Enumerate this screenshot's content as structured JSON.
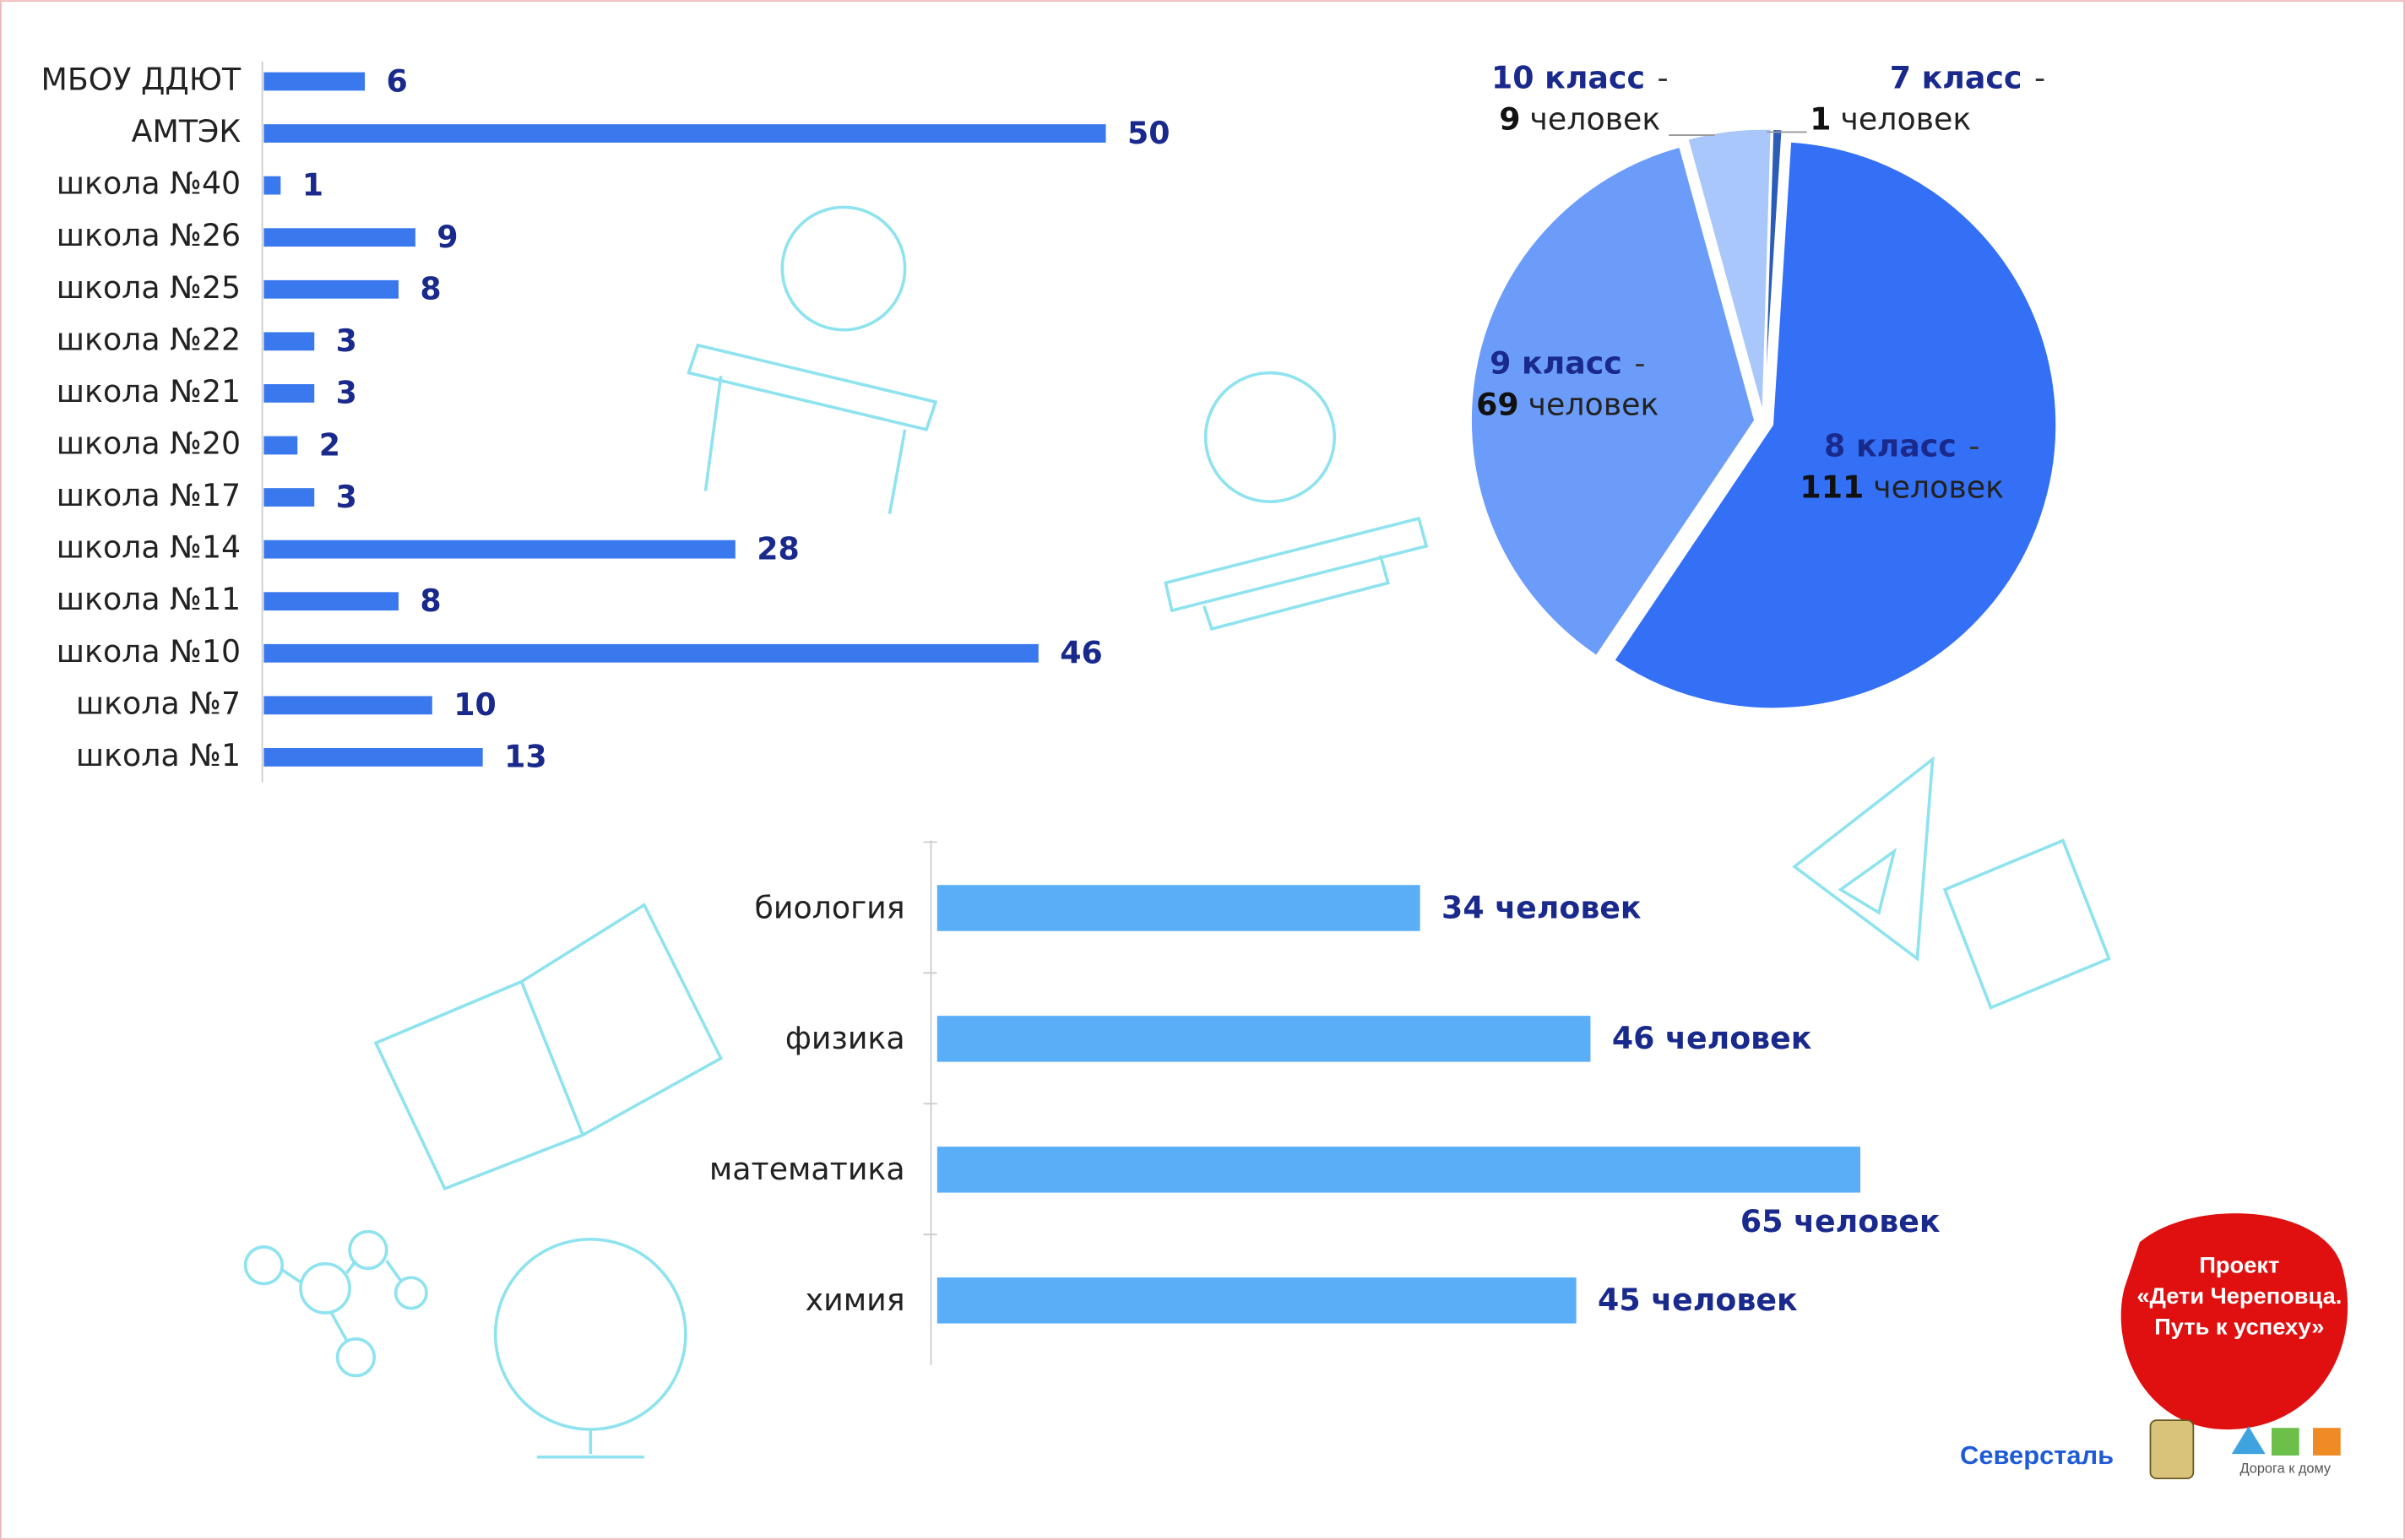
{
  "chart_data": [
    {
      "type": "hbar",
      "categories": [
        "МБОУ ДДЮТ",
        "АМТЭК",
        "школа №40",
        "школа №26",
        "школа №25",
        "школа №22",
        "школа №21",
        "школа №20",
        "школа №17",
        "школа №14",
        "школа №11",
        "школа №10",
        "школа №7",
        "школа №1"
      ],
      "values": [
        6,
        50,
        1,
        9,
        8,
        3,
        3,
        2,
        3,
        28,
        8,
        46,
        10,
        13
      ],
      "color": "#3a78ee"
    },
    {
      "type": "pie",
      "categories": [
        "7 класс",
        "8 класс",
        "9 класс",
        "10 класс"
      ],
      "values": [
        1,
        111,
        69,
        9
      ],
      "colors": [
        "#2a5cb8",
        "#3470f5",
        "#6c9cfa",
        "#aac7fb"
      ],
      "label_separator": "-",
      "unit": "человек"
    },
    {
      "type": "hbar",
      "categories": [
        "биология",
        "физика",
        "математика",
        "химия"
      ],
      "values": [
        34,
        46,
        65,
        45
      ],
      "value_labels": [
        "34 человек",
        "46 человек",
        "65 человек",
        "45 человек"
      ],
      "color": "#5aaef8"
    }
  ],
  "badge": {
    "lines": [
      "Проект",
      "«Дети Череповца.",
      "Путь к успеху»"
    ]
  },
  "logos": {
    "severstal": "Северсталь",
    "road": "Дорога к дому"
  }
}
